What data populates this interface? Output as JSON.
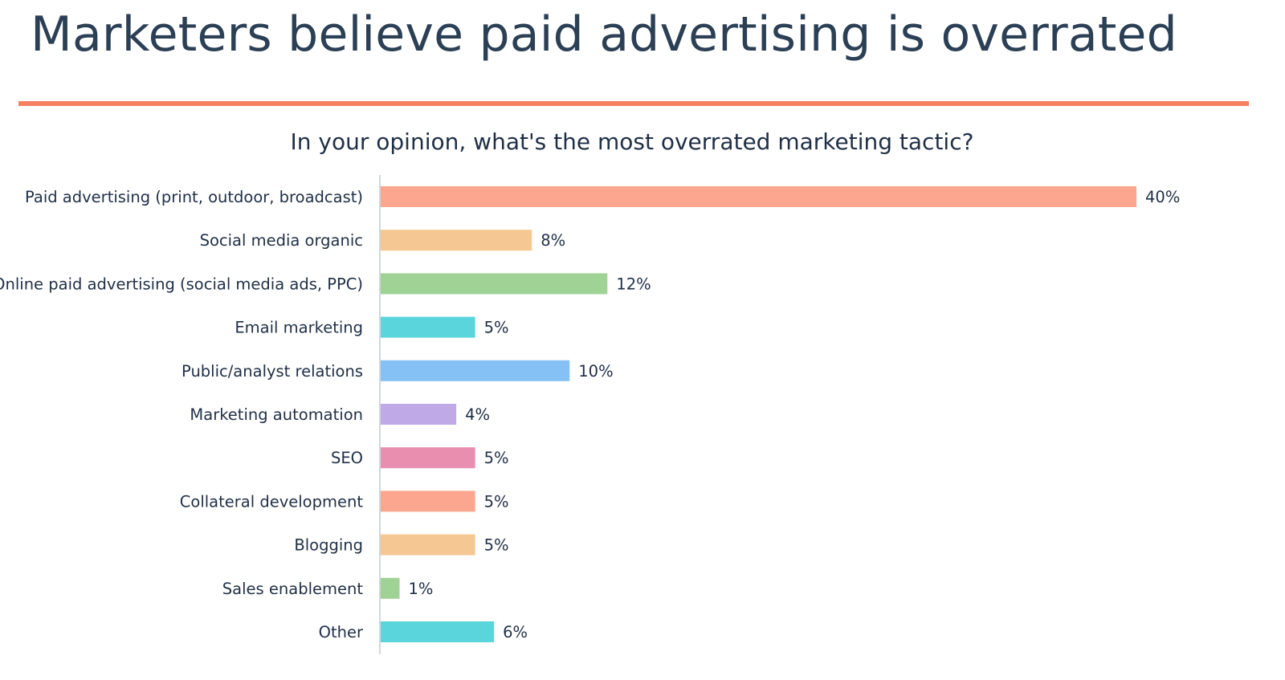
{
  "slide": {
    "title": "Marketers believe paid advertising is overrated"
  },
  "chart_data": {
    "type": "bar",
    "orientation": "horizontal",
    "title": "In your opinion, what's the most overrated marketing tactic?",
    "xlabel": "",
    "ylabel": "",
    "xlim": [
      0,
      40
    ],
    "grid": false,
    "value_format": "percent",
    "categories": [
      "Paid advertising (print, outdoor, broadcast)",
      "Social media organic",
      "Online paid advertising (social media ads, PPC)",
      "Email marketing",
      "Public/analyst relations",
      "Marketing automation",
      "SEO",
      "Collateral development",
      "Blogging",
      "Sales enablement",
      "Other"
    ],
    "values": [
      40,
      8,
      12,
      5,
      10,
      4,
      5,
      5,
      5,
      1,
      6
    ],
    "value_labels": [
      "40%",
      "8%",
      "12%",
      "5%",
      "10%",
      "4%",
      "5%",
      "5%",
      "5%",
      "1%",
      "6%"
    ],
    "colors": [
      "#fca68f",
      "#f5c792",
      "#a0d295",
      "#59d5db",
      "#86c1f5",
      "#bfa9e6",
      "#e98eae",
      "#fca68f",
      "#f5c792",
      "#a0d295",
      "#59d5db"
    ]
  },
  "theme": {
    "title_color": "#2b3f55",
    "rule_color": "#f47f61",
    "axis_color": "#d0d7df",
    "text_color": "#1f2f46"
  }
}
